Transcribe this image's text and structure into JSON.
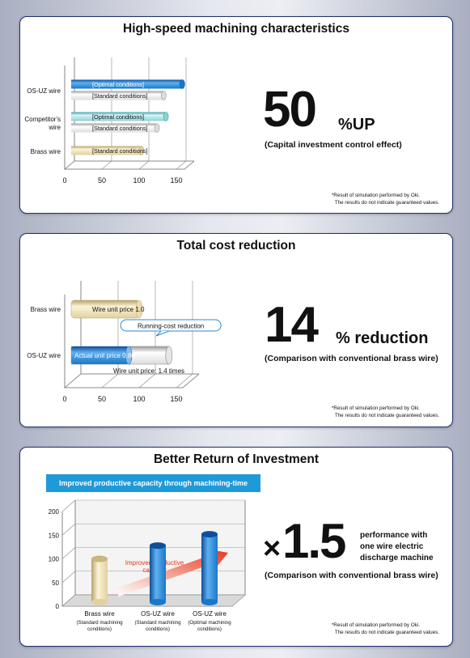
{
  "panel1": {
    "title": "High-speed machining characteristics",
    "big_number": "50",
    "big_unit": "%UP",
    "caption": "(Capital investment control effect)",
    "note_line1": "*Result of simulation performed by Oki.",
    "note_line2": "The results do not indicate guaranteed values."
  },
  "panel2": {
    "title": "Total cost reduction",
    "big_number": "14",
    "big_unit": "% reduction",
    "caption": "(Comparison with conventional brass wire)",
    "callout": "Running-cost reduction",
    "sub_label": "Wire unit price: 1.4 times",
    "note_line1": "*Result of simulation performed by Oki.",
    "note_line2": "The results do not indicate guaranteed values."
  },
  "panel3": {
    "title": "Better Return of Investment",
    "banner": "Improved productive capacity through machining-time reduction",
    "arrow_label_1": "Improved productive",
    "arrow_label_2": "capacity",
    "big_prefix": "×",
    "big_number": "1.5",
    "side_line1": "performance with",
    "side_line2": "one wire electric",
    "side_line3": "discharge machine",
    "caption": "(Comparison with conventional brass wire)",
    "note_line1": "*Result of simulation performed by Oki.",
    "note_line2": "The results do not indicate guaranteed values."
  },
  "colors": {
    "border": "#20306e",
    "blue": "#1b78c8",
    "cyan": "#8fd0d3",
    "gray": "#e6e6e6",
    "brass": "#e6d8a8",
    "banner": "#1f9ad8",
    "arrow": "#e8351e"
  },
  "chart_data": [
    {
      "type": "bar",
      "orientation": "horizontal",
      "xlim": [
        0,
        150
      ],
      "xticks": [
        0,
        50,
        100,
        150
      ],
      "categories": [
        "OS-UZ wire",
        "Competitor's wire",
        "Brass wire"
      ],
      "bars": [
        {
          "category": "OS-UZ wire",
          "label": "[Optimal conditions]",
          "value": 158,
          "color": "blue"
        },
        {
          "category": "OS-UZ wire",
          "label": "[Standard conditions]",
          "value": 133,
          "color": "gray"
        },
        {
          "category": "Competitor's wire",
          "label": "[Optimal conditions]",
          "value": 136,
          "color": "cyan"
        },
        {
          "category": "Competitor's wire",
          "label": "[Standard conditions]",
          "value": 124,
          "color": "gray"
        },
        {
          "category": "Brass wire",
          "label": "[Standard conditions]",
          "value": 103,
          "color": "brass"
        }
      ]
    },
    {
      "type": "bar",
      "orientation": "horizontal",
      "xlim": [
        0,
        150
      ],
      "xticks": [
        0,
        50,
        100,
        150
      ],
      "categories": [
        "Brass wire",
        "OS-UZ wire"
      ],
      "bars": [
        {
          "category": "Brass wire",
          "label": "Wire unit price 1.0",
          "value": 100,
          "color": "brass"
        },
        {
          "category": "OS-UZ wire",
          "label": "Actual unit price 0.86",
          "value": 86,
          "color": "blue"
        },
        {
          "category": "OS-UZ wire",
          "label": "",
          "value": 140,
          "color": "gray"
        }
      ]
    },
    {
      "type": "bar",
      "orientation": "vertical",
      "ylim": [
        0,
        200
      ],
      "yticks": [
        0,
        50,
        100,
        150,
        200
      ],
      "bars": [
        {
          "label": "Brass wire",
          "sub": "(Standard machining conditions)",
          "value": 100,
          "color": "brass"
        },
        {
          "label": "OS-UZ wire",
          "sub": "(Standard machining conditions)",
          "value": 128,
          "color": "blue"
        },
        {
          "label": "OS-UZ wire",
          "sub": "(Optimal machining conditions)",
          "value": 152,
          "color": "blue"
        }
      ]
    }
  ]
}
